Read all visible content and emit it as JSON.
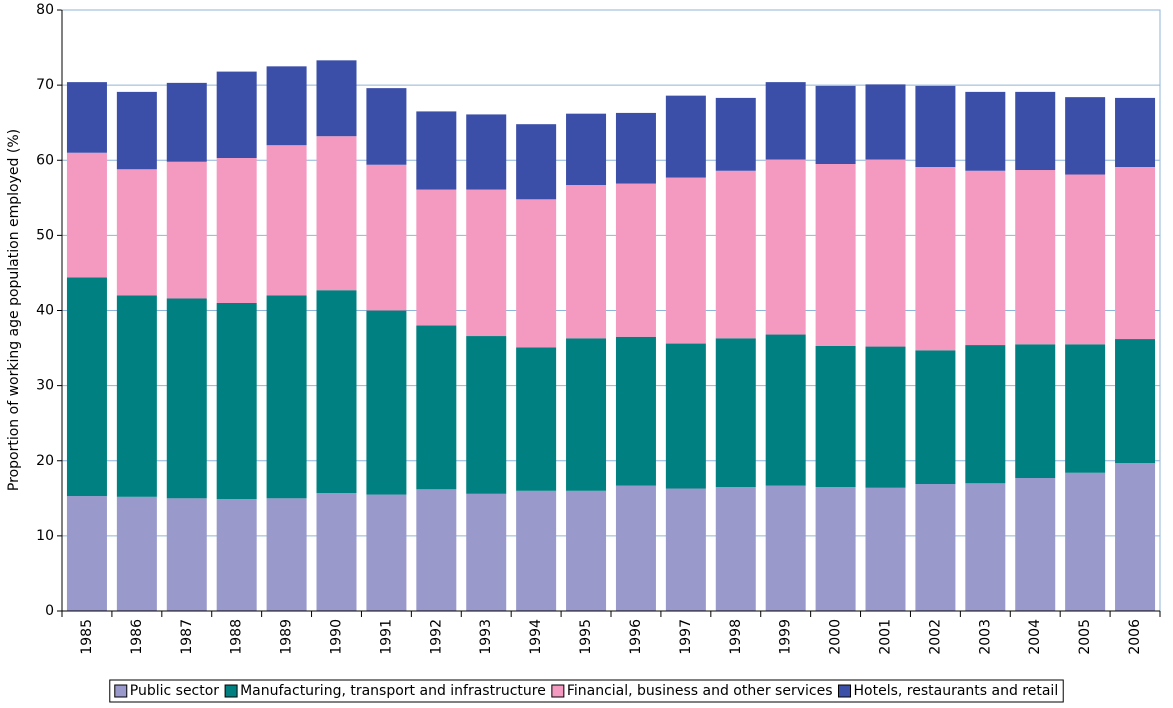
{
  "chart_data": {
    "type": "stacked-bar",
    "y_label": "Proportion of working age population employed (%)",
    "categories": [
      "1985",
      "1986",
      "1987",
      "1988",
      "1989",
      "1990",
      "1991",
      "1992",
      "1993",
      "1994",
      "1995",
      "1996",
      "1997",
      "1998",
      "1999",
      "2000",
      "2001",
      "2002",
      "2003",
      "2004",
      "2005",
      "2006"
    ],
    "series": [
      {
        "name": "Public sector",
        "color": "#9999cc",
        "values": [
          15.3,
          15.2,
          15.0,
          14.9,
          15.0,
          15.7,
          15.5,
          16.2,
          15.6,
          16.0,
          16.0,
          16.7,
          16.3,
          16.5,
          16.7,
          16.5,
          16.4,
          16.9,
          17.0,
          17.7,
          18.4,
          19.7
        ]
      },
      {
        "name": "Manufacturing, transport and infrastructure",
        "color": "#008080",
        "values": [
          29.1,
          26.8,
          26.6,
          26.1,
          27.0,
          27.0,
          24.5,
          21.8,
          21.0,
          19.1,
          20.3,
          19.8,
          19.3,
          19.8,
          20.1,
          18.8,
          18.8,
          17.8,
          18.4,
          17.8,
          17.1,
          16.5
        ]
      },
      {
        "name": "Financial, business and other services",
        "color": "#f49ac1",
        "values": [
          16.6,
          16.8,
          18.2,
          19.3,
          20.0,
          20.5,
          19.4,
          18.1,
          19.5,
          19.7,
          20.4,
          20.4,
          22.1,
          22.3,
          23.3,
          24.2,
          24.9,
          24.4,
          23.2,
          23.2,
          22.6,
          22.9
        ]
      },
      {
        "name": "Hotels, restaurants and retail",
        "color": "#3b4fa8",
        "values": [
          9.4,
          10.3,
          10.5,
          11.5,
          10.5,
          10.1,
          10.2,
          10.4,
          10.0,
          10.0,
          9.5,
          9.4,
          10.9,
          9.7,
          10.3,
          10.4,
          10.0,
          10.8,
          10.5,
          10.4,
          10.3,
          9.2
        ]
      }
    ],
    "ylim": [
      0,
      80
    ],
    "yticks": [
      0,
      10,
      20,
      30,
      40,
      50,
      60,
      70,
      80
    ],
    "grid": true
  }
}
